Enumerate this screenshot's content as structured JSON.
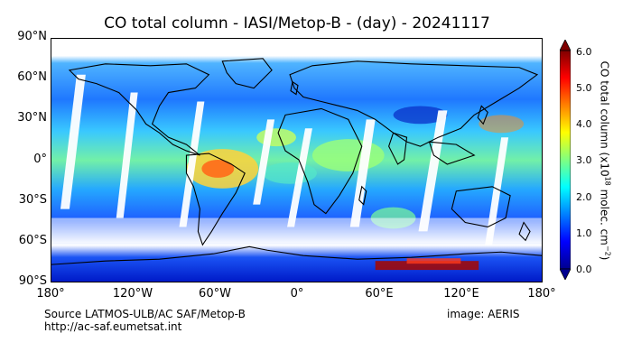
{
  "title": "CO total column - IASI/Metop-B - (day) - 20241117",
  "lat_labels": [
    "90°N",
    "60°N",
    "30°N",
    "0°",
    "30°S",
    "60°S",
    "90°S"
  ],
  "lon_labels": [
    "180°",
    "120°W",
    "60°W",
    "0°",
    "60°E",
    "120°E",
    "180°"
  ],
  "colorbar": {
    "label_main": "CO total column (x10",
    "label_exp": "18",
    "label_unit": " molec. cm",
    "label_unit_exp": "−2",
    "label_close": ")",
    "ticks": [
      "0.0",
      "1.0",
      "2.0",
      "3.0",
      "4.0",
      "5.0",
      "6.0"
    ],
    "min": 0.0,
    "max": 6.0,
    "colors": [
      "#00008f",
      "#0000ff",
      "#0080ff",
      "#00ffff",
      "#80ff80",
      "#ffff00",
      "#ff8000",
      "#ff0000",
      "#800000"
    ]
  },
  "footer": {
    "source": "Source LATMOS-ULB/AC SAF/Metop-B",
    "url": "http://ac-saf.eumetsat.int",
    "credit": "image: AERIS"
  }
}
